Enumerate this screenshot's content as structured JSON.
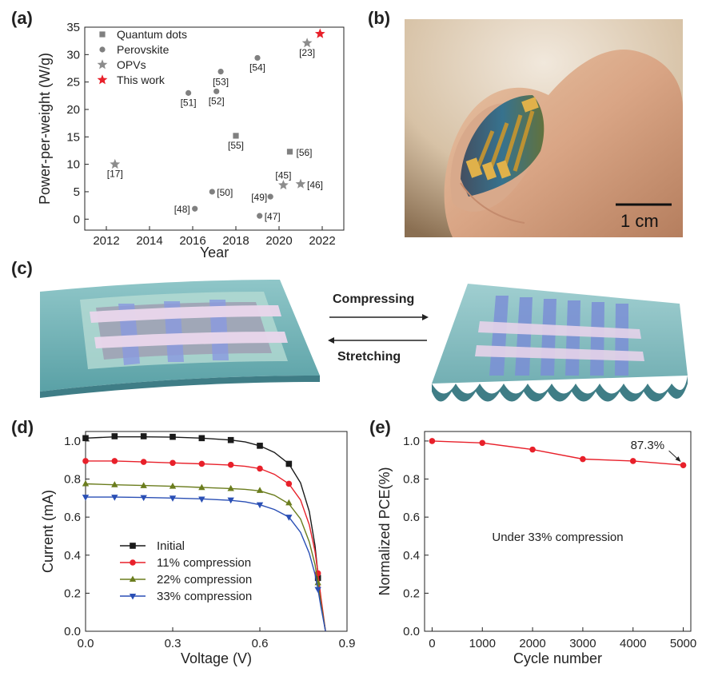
{
  "panels": {
    "a": "(a)",
    "b": "(b)",
    "c": "(c)",
    "d": "(d)",
    "e": "(e)"
  },
  "photo": {
    "scale_label": "1 cm"
  },
  "schematic": {
    "compress_label": "Compressing",
    "stretch_label": "Stretching"
  },
  "chart_data": [
    {
      "panel": "a",
      "type": "scatter",
      "title": "",
      "xlabel": "Year",
      "ylabel": "Power-per-weight (W/g)",
      "xlim": [
        2011,
        2023
      ],
      "ylim": [
        -2,
        35
      ],
      "xticks": [
        2012,
        2014,
        2016,
        2018,
        2020,
        2022
      ],
      "yticks": [
        0,
        5,
        10,
        15,
        20,
        25,
        30,
        35
      ],
      "legend_position": "top-left",
      "series": [
        {
          "name": "Quantum dots",
          "marker": "square",
          "color": "#808080",
          "points": [
            {
              "x": 2018.0,
              "y": 15.2,
              "label": "[55]"
            },
            {
              "x": 2020.5,
              "y": 12.3,
              "label": "[56]"
            }
          ]
        },
        {
          "name": "Perovskite",
          "marker": "circle",
          "color": "#808080",
          "points": [
            {
              "x": 2015.8,
              "y": 23.0,
              "label": "[51]"
            },
            {
              "x": 2017.1,
              "y": 23.3,
              "label": "[52]"
            },
            {
              "x": 2017.3,
              "y": 26.9,
              "label": "[53]"
            },
            {
              "x": 2019.0,
              "y": 29.4,
              "label": "[54]"
            },
            {
              "x": 2016.1,
              "y": 1.9,
              "label": "[48]"
            },
            {
              "x": 2016.9,
              "y": 5.0,
              "label": "[50]"
            },
            {
              "x": 2019.1,
              "y": 0.6,
              "label": "[47]"
            },
            {
              "x": 2019.6,
              "y": 4.1,
              "label": "[49]"
            }
          ]
        },
        {
          "name": "OPVs",
          "marker": "star",
          "color": "#8c8c8c",
          "points": [
            {
              "x": 2012.4,
              "y": 10.0,
              "label": "[17]"
            },
            {
              "x": 2020.2,
              "y": 6.2,
              "label": "[45]"
            },
            {
              "x": 2021.0,
              "y": 6.4,
              "label": "[46]"
            },
            {
              "x": 2021.3,
              "y": 32.1,
              "label": "[23]"
            }
          ]
        },
        {
          "name": "This work",
          "marker": "star",
          "color": "#e8202a",
          "points": [
            {
              "x": 2021.9,
              "y": 33.8,
              "label": ""
            }
          ]
        }
      ]
    },
    {
      "panel": "d",
      "type": "line",
      "title": "",
      "xlabel": "Voltage (V)",
      "ylabel": "Current  (mA)",
      "xlim": [
        0.0,
        0.9
      ],
      "ylim": [
        0.0,
        1.05
      ],
      "xticks": [
        0.0,
        0.3,
        0.6,
        0.9
      ],
      "yticks": [
        0.0,
        0.2,
        0.4,
        0.6,
        0.8,
        1.0
      ],
      "legend_position": "bottom-left",
      "series": [
        {
          "name": "Initial",
          "marker": "square",
          "color": "#1a1a1a",
          "x": [
            0,
            0.1,
            0.2,
            0.3,
            0.4,
            0.5,
            0.6,
            0.7,
            0.8
          ],
          "y": [
            1.015,
            1.025,
            1.025,
            1.022,
            1.015,
            1.005,
            0.975,
            0.88,
            0.28
          ],
          "curve": [
            [
              0,
              1.015
            ],
            [
              0.1,
              1.022
            ],
            [
              0.2,
              1.022
            ],
            [
              0.3,
              1.02
            ],
            [
              0.4,
              1.015
            ],
            [
              0.5,
              1.005
            ],
            [
              0.55,
              0.995
            ],
            [
              0.6,
              0.975
            ],
            [
              0.65,
              0.94
            ],
            [
              0.7,
              0.88
            ],
            [
              0.74,
              0.78
            ],
            [
              0.77,
              0.63
            ],
            [
              0.79,
              0.45
            ],
            [
              0.8,
              0.3
            ],
            [
              0.81,
              0.17
            ],
            [
              0.82,
              0.06
            ],
            [
              0.826,
              0.0
            ]
          ]
        },
        {
          "name": "11% compression",
          "marker": "circle",
          "color": "#e8202a",
          "x": [
            0,
            0.1,
            0.2,
            0.3,
            0.4,
            0.5,
            0.6,
            0.7,
            0.8
          ],
          "y": [
            0.895,
            0.895,
            0.89,
            0.885,
            0.88,
            0.875,
            0.855,
            0.775,
            0.305
          ],
          "curve": [
            [
              0,
              0.895
            ],
            [
              0.1,
              0.895
            ],
            [
              0.2,
              0.89
            ],
            [
              0.3,
              0.885
            ],
            [
              0.4,
              0.88
            ],
            [
              0.5,
              0.873
            ],
            [
              0.55,
              0.867
            ],
            [
              0.6,
              0.855
            ],
            [
              0.65,
              0.825
            ],
            [
              0.7,
              0.775
            ],
            [
              0.74,
              0.69
            ],
            [
              0.77,
              0.56
            ],
            [
              0.79,
              0.42
            ],
            [
              0.8,
              0.305
            ],
            [
              0.81,
              0.18
            ],
            [
              0.82,
              0.07
            ],
            [
              0.826,
              0.0
            ]
          ]
        },
        {
          "name": "22% compression",
          "marker": "triangle-up",
          "color": "#6b7d1e",
          "x": [
            0,
            0.1,
            0.2,
            0.3,
            0.4,
            0.5,
            0.6,
            0.7,
            0.8
          ],
          "y": [
            0.775,
            0.77,
            0.765,
            0.762,
            0.755,
            0.75,
            0.74,
            0.675,
            0.255
          ],
          "curve": [
            [
              0,
              0.775
            ],
            [
              0.1,
              0.77
            ],
            [
              0.2,
              0.766
            ],
            [
              0.3,
              0.762
            ],
            [
              0.4,
              0.756
            ],
            [
              0.5,
              0.75
            ],
            [
              0.55,
              0.746
            ],
            [
              0.6,
              0.738
            ],
            [
              0.65,
              0.715
            ],
            [
              0.7,
              0.67
            ],
            [
              0.74,
              0.59
            ],
            [
              0.77,
              0.47
            ],
            [
              0.79,
              0.35
            ],
            [
              0.8,
              0.255
            ],
            [
              0.81,
              0.15
            ],
            [
              0.82,
              0.06
            ],
            [
              0.826,
              0.0
            ]
          ]
        },
        {
          "name": "33% compression",
          "marker": "triangle-down",
          "color": "#2a4fb5",
          "x": [
            0,
            0.1,
            0.2,
            0.3,
            0.4,
            0.5,
            0.6,
            0.7,
            0.8
          ],
          "y": [
            0.705,
            0.705,
            0.703,
            0.7,
            0.695,
            0.69,
            0.665,
            0.6,
            0.22
          ],
          "curve": [
            [
              0,
              0.705
            ],
            [
              0.1,
              0.705
            ],
            [
              0.2,
              0.703
            ],
            [
              0.3,
              0.7
            ],
            [
              0.4,
              0.696
            ],
            [
              0.5,
              0.688
            ],
            [
              0.55,
              0.68
            ],
            [
              0.6,
              0.665
            ],
            [
              0.65,
              0.64
            ],
            [
              0.7,
              0.6
            ],
            [
              0.74,
              0.52
            ],
            [
              0.77,
              0.41
            ],
            [
              0.79,
              0.3
            ],
            [
              0.8,
              0.22
            ],
            [
              0.81,
              0.13
            ],
            [
              0.82,
              0.05
            ],
            [
              0.826,
              0.0
            ]
          ]
        }
      ]
    },
    {
      "panel": "e",
      "type": "line",
      "title": "",
      "xlabel": "Cycle number",
      "ylabel": "Normalized PCE(%)",
      "xlim": [
        -150,
        5150
      ],
      "ylim": [
        0.0,
        1.05
      ],
      "xticks": [
        0,
        1000,
        2000,
        3000,
        4000,
        5000
      ],
      "yticks": [
        0.0,
        0.2,
        0.4,
        0.6,
        0.8,
        1.0
      ],
      "annotation": "87.3%",
      "note": "Under 33% compression",
      "series": [
        {
          "name": "",
          "marker": "circle",
          "color": "#e8202a",
          "x": [
            0,
            1000,
            2000,
            3000,
            4000,
            5000
          ],
          "y": [
            1.0,
            0.99,
            0.955,
            0.905,
            0.895,
            0.873
          ]
        }
      ]
    }
  ]
}
